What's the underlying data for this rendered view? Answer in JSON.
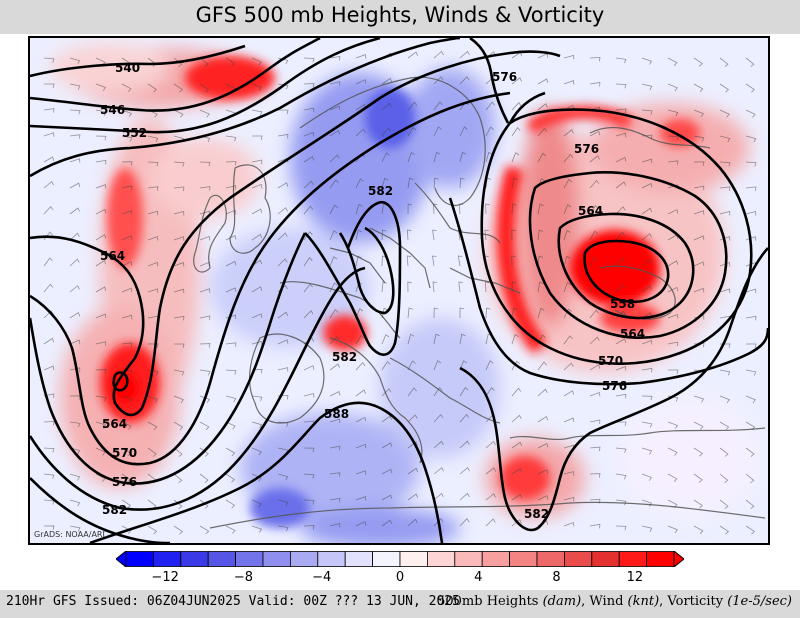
{
  "title": "GFS 500 mb Heights, Winds & Vorticity",
  "credit": "GrADS: NOAA/ARL",
  "footer": {
    "issue": "210Hr GFS Issued: 06Z04JUN2025 Valid: 00Z ??? 13 JUN, 2025",
    "vars_prefix": "500mb Heights",
    "heights_unit": "(dam)",
    "wind_prefix": ", Wind",
    "wind_unit": "(knt)",
    "vort_prefix": ", Vorticity",
    "vort_unit": "(1e-5/sec)"
  },
  "colorbar": {
    "labels": [
      "−12",
      "−8",
      "−4",
      "0",
      "4",
      "8",
      "12"
    ],
    "colors": [
      "#0000ff",
      "#2020f0",
      "#3a3ae6",
      "#5656e6",
      "#7373ea",
      "#8f8fef",
      "#aaaaf3",
      "#c6c6f8",
      "#e2e2fc",
      "#f4f4ff",
      "#fff0f0",
      "#fdd5d5",
      "#fbbaba",
      "#f89f9f",
      "#f48484",
      "#ef6868",
      "#ea4c4c",
      "#e53030",
      "#ff1a1a",
      "#ff0000"
    ]
  },
  "contour_labels": [
    "540",
    "546",
    "552",
    "564",
    "564",
    "570",
    "576",
    "582",
    "582",
    "588",
    "576",
    "576",
    "564",
    "558",
    "564",
    "570",
    "576",
    "582",
    "582"
  ],
  "colors": {
    "positive_vorticity": "#ff0000",
    "negative_vorticity": "#3a3ae6",
    "contour": "#000000",
    "coastline": "#555555"
  }
}
